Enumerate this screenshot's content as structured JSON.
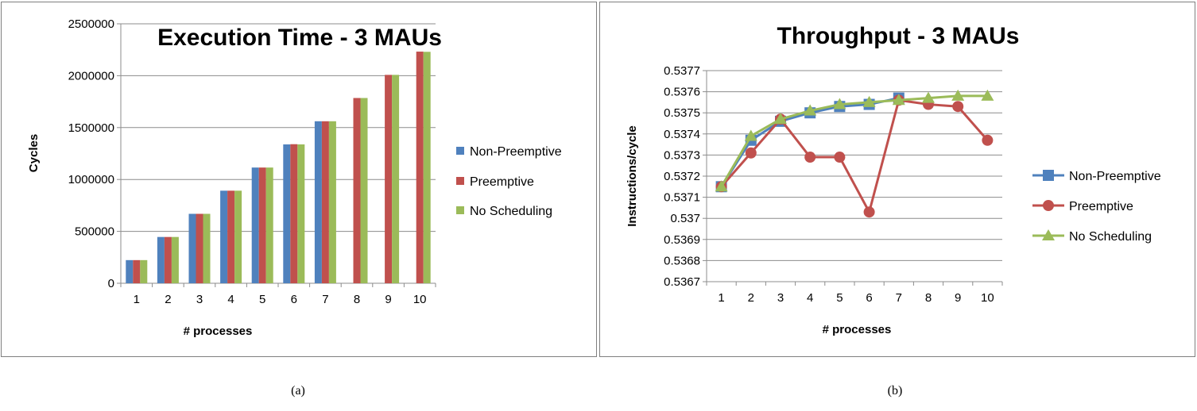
{
  "captions": {
    "a": "(a)",
    "b": "(b)"
  },
  "chart_data": [
    {
      "type": "bar",
      "title": "Execution Time - 3 MAUs",
      "xlabel": "# processes",
      "ylabel": "Cycles",
      "ylim": [
        0,
        2500000
      ],
      "yticks": [
        0,
        500000,
        1000000,
        1500000,
        2000000,
        2500000
      ],
      "ytick_labels": [
        "0",
        "500000",
        "1000000",
        "1500000",
        "2000000",
        "2500000"
      ],
      "categories": [
        "1",
        "2",
        "3",
        "4",
        "5",
        "6",
        "7",
        "8",
        "9",
        "10"
      ],
      "grid": true,
      "legend_position": "right",
      "series": [
        {
          "name": "Non-Preemptive",
          "color": "#4f81bd",
          "values": [
            223000,
            446000,
            669000,
            892000,
            1115000,
            1338000,
            1561000,
            null,
            null,
            null
          ]
        },
        {
          "name": "Preemptive",
          "color": "#c0504d",
          "values": [
            223000,
            446000,
            669000,
            892000,
            1115000,
            1340000,
            1561000,
            1785000,
            2008000,
            2232000
          ]
        },
        {
          "name": "No Scheduling",
          "color": "#9bbb59",
          "values": [
            223000,
            446000,
            669000,
            892000,
            1115000,
            1338000,
            1561000,
            1785000,
            2008000,
            2230000
          ]
        }
      ]
    },
    {
      "type": "line",
      "title": "Throughput - 3 MAUs",
      "xlabel": "# processes",
      "ylabel": "Instructions/cycle",
      "ylim": [
        0.5367,
        0.5377
      ],
      "yticks": [
        0.5367,
        0.5368,
        0.5369,
        0.537,
        0.5371,
        0.5372,
        0.5373,
        0.5374,
        0.5375,
        0.5376,
        0.5377
      ],
      "ytick_labels": [
        "0.5367",
        "0.5368",
        "0.5369",
        "0.537",
        "0.5371",
        "0.5372",
        "0.5373",
        "0.5374",
        "0.5375",
        "0.5376",
        "0.5377"
      ],
      "categories": [
        "1",
        "2",
        "3",
        "4",
        "5",
        "6",
        "7",
        "8",
        "9",
        "10"
      ],
      "grid": true,
      "legend_position": "right",
      "series": [
        {
          "name": "Non-Preemptive",
          "color": "#4f81bd",
          "marker": "square",
          "values": [
            0.53715,
            0.53737,
            0.53746,
            0.5375,
            0.53753,
            0.53754,
            0.53757,
            null,
            null,
            null
          ]
        },
        {
          "name": "Preemptive",
          "color": "#c0504d",
          "marker": "circle",
          "values": [
            0.53715,
            0.53731,
            0.53747,
            0.53729,
            0.53729,
            0.53703,
            0.53756,
            0.53754,
            0.53753,
            0.53737
          ]
        },
        {
          "name": "No Scheduling",
          "color": "#9bbb59",
          "marker": "triangle",
          "values": [
            0.53715,
            0.53739,
            0.53747,
            0.53751,
            0.53754,
            0.53755,
            0.53756,
            0.53757,
            0.53758,
            0.53758
          ]
        }
      ]
    }
  ]
}
